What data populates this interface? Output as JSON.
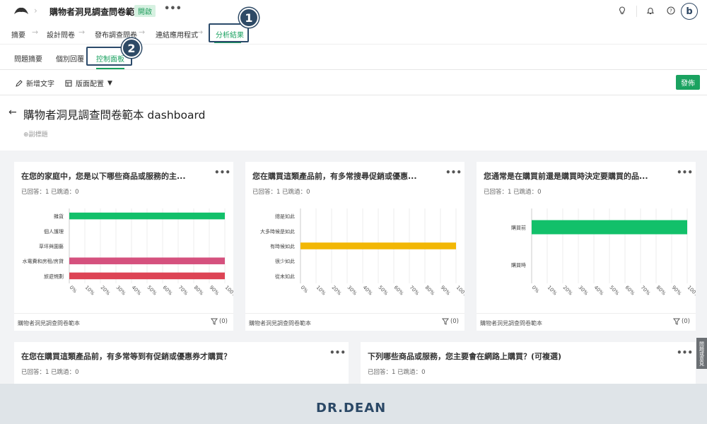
{
  "header": {
    "survey_title": "購物者洞見調查問卷範本",
    "status": "開啟",
    "more": "•••"
  },
  "steps": [
    {
      "label": "摘要"
    },
    {
      "label": "設計問卷"
    },
    {
      "label": "發布調查問卷"
    },
    {
      "label": "連結應用程式"
    },
    {
      "label": "分析結果"
    }
  ],
  "step_arrow": "→",
  "subtabs": [
    {
      "label": "問題摘要"
    },
    {
      "label": "個別回覆"
    },
    {
      "label": "控制面板"
    }
  ],
  "badges": {
    "one": "1",
    "two": "2"
  },
  "toolbar": {
    "add_text": "新增文字",
    "layout": "版面配置",
    "publish": "發佈"
  },
  "dashboard": {
    "back": "←",
    "title": "購物者洞見調查問卷範本 dashboard",
    "add_subtitle": "⊕副標題"
  },
  "cards": [
    {
      "title": "在您的家庭中，您是以下哪些商品或服務的主...",
      "meta": "已回答：1 已跳過：0",
      "source": "購物者洞見調查問卷範本",
      "filter": "(0)"
    },
    {
      "title": "您在購買這類產品前，有多常搜尋促銷或優惠...",
      "meta": "已回答：1 已跳過：0",
      "source": "購物者洞見調查問卷範本",
      "filter": "(0)"
    },
    {
      "title": "您通常是在購買前還是購買時決定要購買的品...",
      "meta": "已回答：1 已跳過：0",
      "source": "購物者洞見調查問卷範本",
      "filter": "(0)"
    },
    {
      "title": "在您在購買這類產品前，有多常等到有促銷或優惠券才購買？",
      "meta": "已回答：1 已跳過：0"
    },
    {
      "title": "下列哪些商品或服務，您主要會在網路上購買？(可複選)",
      "meta": "已回答：1 已跳過：0"
    }
  ],
  "chart_data": [
    {
      "type": "bar",
      "orientation": "horizontal",
      "categories": [
        "雜貨",
        "個人護理",
        "草坪與園藝",
        "水電費和房租/房貸",
        "旅遊規劃"
      ],
      "values": [
        100,
        0,
        0,
        100,
        100
      ],
      "colors": [
        "#12c06a",
        "#12c06a",
        "#12c06a",
        "#d5517e",
        "#dd4455"
      ],
      "xticks": [
        "0%",
        "10%",
        "20%",
        "30%",
        "40%",
        "50%",
        "60%",
        "70%",
        "80%",
        "90%",
        "100%"
      ],
      "xlim": [
        0,
        100
      ]
    },
    {
      "type": "bar",
      "orientation": "horizontal",
      "categories": [
        "總是如此",
        "大多時候是如此",
        "有時候如此",
        "很少如此",
        "從未如此"
      ],
      "values": [
        0,
        0,
        100,
        0,
        0
      ],
      "colors": [
        "#f2b705",
        "#f2b705",
        "#f2b705",
        "#f2b705",
        "#f2b705"
      ],
      "xticks": [
        "0%",
        "10%",
        "20%",
        "30%",
        "40%",
        "50%",
        "60%",
        "70%",
        "80%",
        "90%",
        "100%"
      ],
      "xlim": [
        0,
        100
      ]
    },
    {
      "type": "bar",
      "orientation": "horizontal",
      "categories": [
        "購買前",
        "購買時"
      ],
      "values": [
        100,
        0
      ],
      "colors": [
        "#12c06a",
        "#12c06a"
      ],
      "xticks": [
        "0%",
        "10%",
        "20%",
        "30%",
        "40%",
        "50%",
        "60%",
        "70%",
        "80%",
        "90%",
        "100%"
      ],
      "xlim": [
        0,
        100
      ]
    }
  ],
  "brand": "DR.DEAN",
  "side_tab": "問題或意見"
}
